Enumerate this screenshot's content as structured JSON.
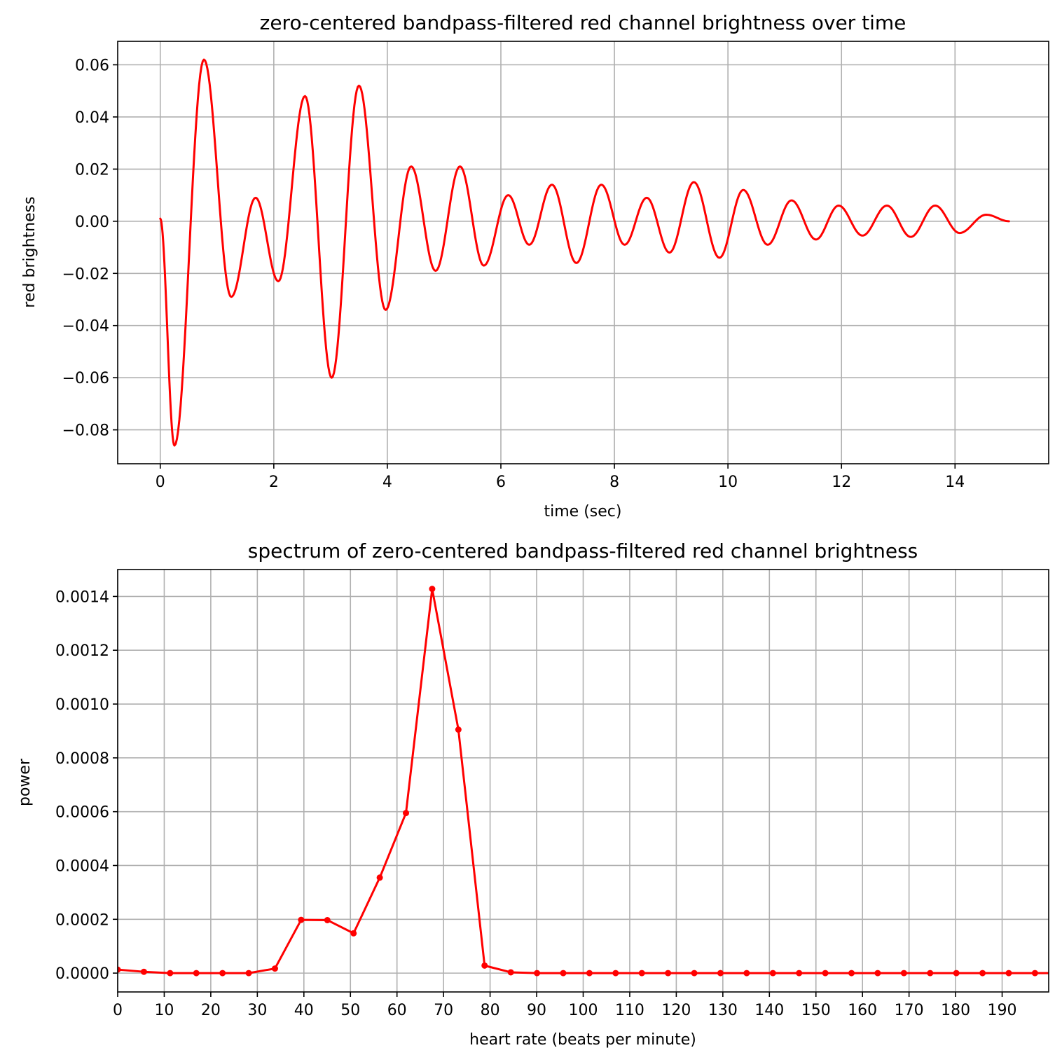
{
  "chart_data": [
    {
      "type": "line",
      "title": "zero-centered bandpass-filtered red channel brightness over time",
      "xlabel": "time (sec)",
      "ylabel": "red brightness",
      "xlim": [
        -0.75,
        15.65
      ],
      "ylim": [
        -0.093,
        0.069
      ],
      "x_ticks": [
        0,
        2,
        4,
        6,
        8,
        10,
        12,
        14
      ],
      "x_tick_labels": [
        "0",
        "2",
        "4",
        "6",
        "8",
        "10",
        "12",
        "14"
      ],
      "y_ticks": [
        0.06,
        0.04,
        0.02,
        0.0,
        -0.02,
        -0.04,
        -0.06,
        -0.08
      ],
      "y_tick_labels": [
        "0.06",
        "0.04",
        "0.02",
        "0.00",
        "−0.02",
        "−0.04",
        "−0.06",
        "−0.08"
      ],
      "grid": true,
      "color": "#ff0000",
      "series": [
        {
          "extrema": [
            [
              0.0,
              0.001
            ],
            [
              0.25,
              -0.086
            ],
            [
              0.77,
              0.062
            ],
            [
              1.25,
              -0.029
            ],
            [
              1.68,
              0.009
            ],
            [
              2.08,
              -0.023
            ],
            [
              2.55,
              0.048
            ],
            [
              3.02,
              -0.06
            ],
            [
              3.5,
              0.052
            ],
            [
              3.97,
              -0.034
            ],
            [
              4.42,
              0.021
            ],
            [
              4.85,
              -0.019
            ],
            [
              5.28,
              0.021
            ],
            [
              5.7,
              -0.017
            ],
            [
              6.13,
              0.01
            ],
            [
              6.5,
              -0.009
            ],
            [
              6.9,
              0.014
            ],
            [
              7.33,
              -0.016
            ],
            [
              7.77,
              0.014
            ],
            [
              8.18,
              -0.009
            ],
            [
              8.57,
              0.009
            ],
            [
              8.97,
              -0.012
            ],
            [
              9.4,
              0.015
            ],
            [
              9.85,
              -0.014
            ],
            [
              10.27,
              0.012
            ],
            [
              10.7,
              -0.009
            ],
            [
              11.12,
              0.008
            ],
            [
              11.55,
              -0.007
            ],
            [
              11.95,
              0.006
            ],
            [
              12.37,
              -0.0055
            ],
            [
              12.8,
              0.006
            ],
            [
              13.22,
              -0.006
            ],
            [
              13.65,
              0.006
            ],
            [
              14.08,
              -0.0045
            ],
            [
              14.55,
              0.0025
            ],
            [
              14.95,
              0.0
            ]
          ]
        }
      ]
    },
    {
      "type": "line",
      "title": "spectrum of zero-centered bandpass-filtered red channel brightness",
      "xlabel": "heart rate (beats per minute)",
      "ylabel": "power",
      "xlim": [
        0,
        200
      ],
      "ylim": [
        -7e-05,
        0.0015
      ],
      "x_ticks": [
        0,
        10,
        20,
        30,
        40,
        50,
        60,
        70,
        80,
        90,
        100,
        110,
        120,
        130,
        140,
        150,
        160,
        170,
        180,
        190
      ],
      "x_tick_labels": [
        "0",
        "10",
        "20",
        "30",
        "40",
        "50",
        "60",
        "70",
        "80",
        "90",
        "100",
        "110",
        "120",
        "130",
        "140",
        "150",
        "160",
        "170",
        "180",
        "190"
      ],
      "y_ticks": [
        0.0014,
        0.0012,
        0.001,
        0.0008,
        0.0006,
        0.0004,
        0.0002,
        0.0
      ],
      "y_tick_labels": [
        "0.0014",
        "0.0012",
        "0.0010",
        "0.0008",
        "0.0006",
        "0.0004",
        "0.0002",
        "0.0000"
      ],
      "grid": true,
      "color": "#ff0000",
      "series": [
        {
          "x": [
            0.0,
            5.63,
            11.26,
            16.89,
            22.52,
            28.15,
            33.78,
            39.41,
            45.04,
            50.67,
            56.3,
            61.93,
            67.56,
            73.19,
            78.82,
            84.45,
            90.08,
            95.71,
            101.34,
            106.97,
            112.6,
            118.23,
            123.86,
            129.49,
            135.12,
            140.75,
            146.38,
            152.01,
            157.64,
            163.27,
            168.9,
            174.53,
            180.16,
            185.79,
            191.42,
            197.05,
            202.68
          ],
          "values": [
            1.3e-05,
            5e-06,
            0.0,
            0.0,
            0.0,
            0.0,
            1.7e-05,
            0.000198,
            0.000197,
            0.000148,
            0.000355,
            0.000595,
            0.001428,
            0.000905,
            2.8e-05,
            3e-06,
            0.0,
            0.0,
            0.0,
            0.0,
            0.0,
            0.0,
            0.0,
            0.0,
            0.0,
            0.0,
            0.0,
            0.0,
            0.0,
            0.0,
            0.0,
            0.0,
            0.0,
            0.0,
            0.0,
            0.0,
            0.0
          ]
        }
      ]
    }
  ]
}
